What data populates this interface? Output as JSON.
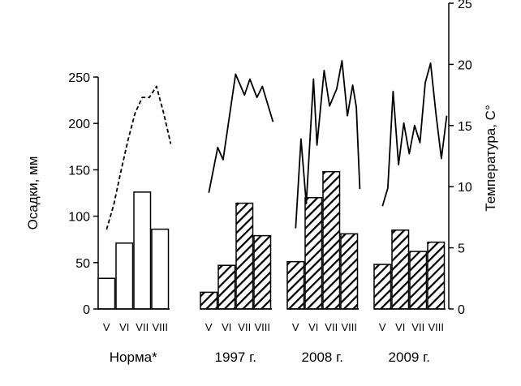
{
  "chart_data": {
    "type": "bar",
    "left_axis": {
      "label": "Осадки, мм",
      "ylim": [
        0,
        250
      ],
      "ticks": [
        "0",
        "50",
        "100",
        "150",
        "200",
        "250"
      ]
    },
    "right_axis": {
      "label": "Температура, С°",
      "ylim": [
        0,
        25
      ],
      "ticks": [
        "0",
        "5",
        "10",
        "15",
        "20",
        "25"
      ]
    },
    "groups": [
      {
        "label": "Норма*",
        "months": [
          "V",
          "VI",
          "VII",
          "VIII"
        ],
        "precip": [
          33,
          71,
          126,
          86
        ],
        "bar_style": "open",
        "temp_x": [
          0.0,
          0.4,
          0.8,
          1.2,
          1.6,
          2.0,
          2.4,
          2.8,
          3.2,
          3.6
        ],
        "temp": [
          6.5,
          8.5,
          11.2,
          13.8,
          16.0,
          17.3,
          17.3,
          18.2,
          16.0,
          13.5
        ],
        "temp_style": "dashed"
      },
      {
        "label": "1997 г.",
        "months": [
          "V",
          "VI",
          "VII",
          "VIII"
        ],
        "precip": [
          18,
          47,
          114,
          79
        ],
        "bar_style": "hatched",
        "temp_x": [
          0.0,
          0.5,
          0.8,
          1.5,
          2.0,
          2.3,
          2.7,
          3.0,
          3.6
        ],
        "temp": [
          9.5,
          13.2,
          12.2,
          19.2,
          17.5,
          18.8,
          17.3,
          18.2,
          15.3
        ],
        "temp_style": "solid"
      },
      {
        "label": "2008 г.",
        "months": [
          "V",
          "VI",
          "VII",
          "VIII"
        ],
        "precip": [
          51,
          120,
          148,
          81
        ],
        "bar_style": "hatched",
        "temp_x": [
          0.0,
          0.3,
          0.6,
          1.0,
          1.2,
          1.6,
          1.9,
          2.3,
          2.6,
          2.9,
          3.2,
          3.4,
          3.6
        ],
        "temp": [
          6.6,
          13.9,
          8.6,
          18.8,
          13.4,
          19.5,
          16.6,
          18.0,
          20.3,
          15.8,
          18.3,
          16.5,
          9.8
        ],
        "temp_style": "solid"
      },
      {
        "label": "2009 г.",
        "months": [
          "V",
          "VI",
          "VII",
          "VIII"
        ],
        "precip": [
          48,
          85,
          62,
          72
        ],
        "bar_style": "hatched",
        "temp_x": [
          0.0,
          0.3,
          0.6,
          0.9,
          1.2,
          1.5,
          1.8,
          2.1,
          2.4,
          2.7,
          3.0,
          3.3,
          3.6
        ],
        "temp": [
          8.4,
          9.9,
          17.8,
          11.8,
          15.2,
          12.7,
          15.0,
          13.6,
          18.5,
          20.1,
          15.9,
          12.3,
          15.8
        ],
        "temp_style": "solid"
      }
    ],
    "grid": false,
    "legend": "none"
  }
}
